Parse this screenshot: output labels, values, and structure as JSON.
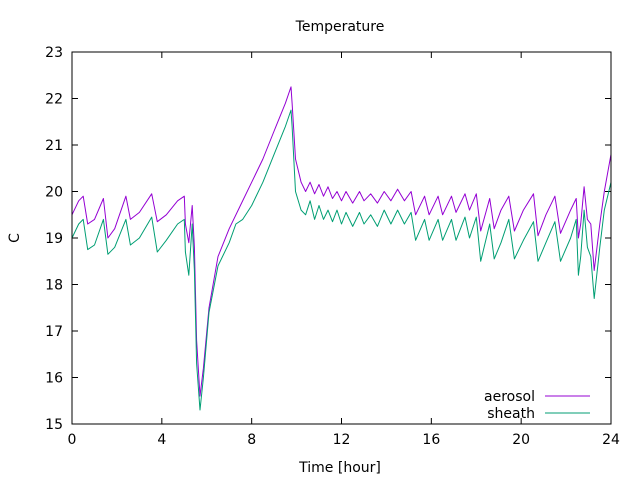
{
  "chart_data": {
    "type": "line",
    "title": "Temperature",
    "xlabel": "Time [hour]",
    "ylabel": "C",
    "xlim": [
      0,
      24
    ],
    "ylim": [
      15,
      23
    ],
    "xticks": [
      0,
      4,
      8,
      12,
      16,
      20,
      24
    ],
    "yticks": [
      15,
      16,
      17,
      18,
      19,
      20,
      21,
      22,
      23
    ],
    "grid": false,
    "legend_position": "bottom-right",
    "series": [
      {
        "name": "aerosol",
        "color": "#9400d3",
        "points": [
          [
            0.0,
            19.5
          ],
          [
            0.3,
            19.8
          ],
          [
            0.5,
            19.9
          ],
          [
            0.7,
            19.3
          ],
          [
            1.0,
            19.4
          ],
          [
            1.4,
            19.85
          ],
          [
            1.6,
            19.0
          ],
          [
            1.9,
            19.2
          ],
          [
            2.4,
            19.9
          ],
          [
            2.6,
            19.4
          ],
          [
            3.0,
            19.55
          ],
          [
            3.55,
            19.95
          ],
          [
            3.8,
            19.35
          ],
          [
            4.2,
            19.5
          ],
          [
            4.7,
            19.8
          ],
          [
            5.0,
            19.9
          ],
          [
            5.05,
            19.3
          ],
          [
            5.2,
            18.9
          ],
          [
            5.35,
            19.7
          ],
          [
            5.45,
            18.8
          ],
          [
            5.55,
            16.8
          ],
          [
            5.7,
            15.6
          ],
          [
            5.85,
            16.2
          ],
          [
            6.1,
            17.5
          ],
          [
            6.5,
            18.6
          ],
          [
            7.0,
            19.2
          ],
          [
            7.5,
            19.7
          ],
          [
            8.0,
            20.2
          ],
          [
            8.5,
            20.7
          ],
          [
            9.0,
            21.3
          ],
          [
            9.5,
            21.9
          ],
          [
            9.75,
            22.25
          ],
          [
            9.8,
            21.9
          ],
          [
            9.95,
            20.7
          ],
          [
            10.2,
            20.2
          ],
          [
            10.4,
            20.0
          ],
          [
            10.6,
            20.2
          ],
          [
            10.8,
            19.95
          ],
          [
            11.0,
            20.15
          ],
          [
            11.2,
            19.9
          ],
          [
            11.4,
            20.1
          ],
          [
            11.6,
            19.85
          ],
          [
            11.8,
            20.0
          ],
          [
            12.0,
            19.8
          ],
          [
            12.2,
            20.0
          ],
          [
            12.5,
            19.75
          ],
          [
            12.8,
            20.0
          ],
          [
            13.0,
            19.8
          ],
          [
            13.3,
            19.95
          ],
          [
            13.6,
            19.75
          ],
          [
            13.9,
            20.0
          ],
          [
            14.2,
            19.8
          ],
          [
            14.5,
            20.05
          ],
          [
            14.8,
            19.8
          ],
          [
            15.1,
            20.0
          ],
          [
            15.3,
            19.5
          ],
          [
            15.7,
            19.9
          ],
          [
            15.9,
            19.5
          ],
          [
            16.3,
            19.9
          ],
          [
            16.5,
            19.5
          ],
          [
            16.9,
            19.9
          ],
          [
            17.1,
            19.55
          ],
          [
            17.5,
            19.95
          ],
          [
            17.7,
            19.6
          ],
          [
            18.0,
            19.95
          ],
          [
            18.2,
            19.15
          ],
          [
            18.6,
            19.85
          ],
          [
            18.8,
            19.2
          ],
          [
            19.1,
            19.6
          ],
          [
            19.45,
            19.9
          ],
          [
            19.7,
            19.15
          ],
          [
            20.1,
            19.6
          ],
          [
            20.55,
            19.95
          ],
          [
            20.75,
            19.05
          ],
          [
            21.1,
            19.5
          ],
          [
            21.5,
            19.9
          ],
          [
            21.75,
            19.1
          ],
          [
            22.2,
            19.6
          ],
          [
            22.45,
            19.85
          ],
          [
            22.55,
            19.0
          ],
          [
            22.65,
            19.3
          ],
          [
            22.8,
            20.1
          ],
          [
            22.95,
            19.4
          ],
          [
            23.1,
            19.3
          ],
          [
            23.25,
            18.3
          ],
          [
            23.5,
            19.3
          ],
          [
            23.7,
            20.0
          ],
          [
            24.0,
            20.8
          ]
        ]
      },
      {
        "name": "sheath",
        "color": "#009e73",
        "points": [
          [
            0.0,
            19.0
          ],
          [
            0.3,
            19.3
          ],
          [
            0.5,
            19.4
          ],
          [
            0.7,
            18.75
          ],
          [
            1.0,
            18.85
          ],
          [
            1.4,
            19.4
          ],
          [
            1.6,
            18.65
          ],
          [
            1.9,
            18.8
          ],
          [
            2.4,
            19.4
          ],
          [
            2.6,
            18.85
          ],
          [
            3.0,
            19.0
          ],
          [
            3.55,
            19.45
          ],
          [
            3.8,
            18.7
          ],
          [
            4.2,
            18.95
          ],
          [
            4.7,
            19.3
          ],
          [
            5.0,
            19.4
          ],
          [
            5.05,
            18.7
          ],
          [
            5.2,
            18.2
          ],
          [
            5.35,
            19.3
          ],
          [
            5.45,
            18.3
          ],
          [
            5.55,
            16.3
          ],
          [
            5.7,
            15.3
          ],
          [
            5.85,
            16.0
          ],
          [
            6.1,
            17.4
          ],
          [
            6.5,
            18.4
          ],
          [
            7.0,
            18.9
          ],
          [
            7.3,
            19.3
          ],
          [
            7.6,
            19.4
          ],
          [
            8.0,
            19.7
          ],
          [
            8.5,
            20.2
          ],
          [
            9.0,
            20.8
          ],
          [
            9.5,
            21.4
          ],
          [
            9.75,
            21.75
          ],
          [
            9.8,
            21.4
          ],
          [
            9.95,
            20.0
          ],
          [
            10.2,
            19.6
          ],
          [
            10.4,
            19.5
          ],
          [
            10.6,
            19.8
          ],
          [
            10.8,
            19.4
          ],
          [
            11.0,
            19.7
          ],
          [
            11.2,
            19.4
          ],
          [
            11.4,
            19.6
          ],
          [
            11.6,
            19.35
          ],
          [
            11.8,
            19.6
          ],
          [
            12.0,
            19.3
          ],
          [
            12.2,
            19.55
          ],
          [
            12.5,
            19.25
          ],
          [
            12.8,
            19.55
          ],
          [
            13.0,
            19.3
          ],
          [
            13.3,
            19.5
          ],
          [
            13.6,
            19.25
          ],
          [
            13.9,
            19.6
          ],
          [
            14.2,
            19.3
          ],
          [
            14.5,
            19.6
          ],
          [
            14.8,
            19.3
          ],
          [
            15.1,
            19.55
          ],
          [
            15.3,
            18.95
          ],
          [
            15.7,
            19.4
          ],
          [
            15.9,
            18.95
          ],
          [
            16.3,
            19.4
          ],
          [
            16.5,
            18.95
          ],
          [
            16.9,
            19.4
          ],
          [
            17.1,
            18.95
          ],
          [
            17.5,
            19.45
          ],
          [
            17.7,
            19.0
          ],
          [
            18.0,
            19.45
          ],
          [
            18.2,
            18.5
          ],
          [
            18.6,
            19.3
          ],
          [
            18.8,
            18.55
          ],
          [
            19.1,
            18.9
          ],
          [
            19.45,
            19.4
          ],
          [
            19.7,
            18.55
          ],
          [
            20.1,
            18.95
          ],
          [
            20.55,
            19.35
          ],
          [
            20.75,
            18.5
          ],
          [
            21.1,
            18.9
          ],
          [
            21.5,
            19.35
          ],
          [
            21.75,
            18.5
          ],
          [
            22.2,
            19.0
          ],
          [
            22.45,
            19.4
          ],
          [
            22.55,
            18.2
          ],
          [
            22.65,
            18.6
          ],
          [
            22.8,
            19.6
          ],
          [
            22.95,
            18.8
          ],
          [
            23.1,
            18.6
          ],
          [
            23.25,
            17.7
          ],
          [
            23.5,
            18.8
          ],
          [
            23.7,
            19.6
          ],
          [
            24.0,
            20.2
          ]
        ]
      }
    ]
  }
}
